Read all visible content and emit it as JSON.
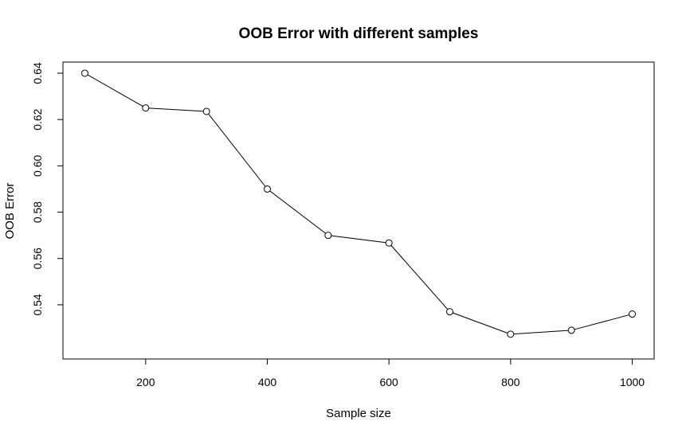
{
  "chart_data": {
    "type": "line",
    "title": "OOB Error with different samples",
    "xlabel": "Sample size",
    "ylabel": "OOB Error",
    "x": [
      100,
      200,
      300,
      400,
      500,
      600,
      700,
      800,
      900,
      1000
    ],
    "values": [
      0.64,
      0.625,
      0.6235,
      0.59,
      0.57,
      0.5667,
      0.537,
      0.5273,
      0.529,
      0.536
    ],
    "xlim": [
      64,
      1036
    ],
    "ylim": [
      0.5166,
      0.6448
    ],
    "x_ticks": [
      200,
      400,
      600,
      800,
      1000
    ],
    "y_ticks": [
      0.54,
      0.56,
      0.58,
      0.6,
      0.62,
      0.64
    ],
    "x_tick_labels": [
      "200",
      "400",
      "600",
      "800",
      "1000"
    ],
    "y_tick_labels": [
      "0.54",
      "0.56",
      "0.58",
      "0.60",
      "0.62",
      "0.64"
    ],
    "grid": false,
    "legend": "none",
    "line_color": "#000000",
    "marker": "open-circle"
  }
}
